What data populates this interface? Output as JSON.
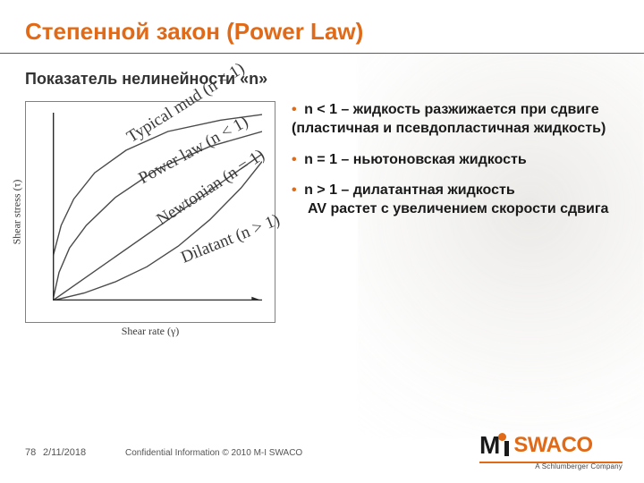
{
  "colors": {
    "accent": "#e06a17",
    "text": "#1a1a1a",
    "title": "#e06a17",
    "rule": "#5a5a5a",
    "chart_border": "#808080",
    "axis": "#2a2a2a",
    "curve": "#4a4a4a",
    "background": "#ffffff"
  },
  "typography": {
    "title_fontsize": 26,
    "subtitle_fontsize": 18,
    "body_fontsize": 16,
    "axis_label_fontsize": 12,
    "curve_label_fontsize": 9,
    "footer_fontsize": 11
  },
  "title": "Степенной закон (Power Law)",
  "subtitle": "Показатель нелинейности «n»",
  "chart": {
    "type": "line",
    "xlabel": "Shear rate (γ)",
    "ylabel": "Shear stress (τ)",
    "xlim": [
      0,
      10
    ],
    "ylim": [
      0,
      10
    ],
    "axis_color": "#2a2a2a",
    "curve_color": "#4a4a4a",
    "line_width": 1.4,
    "curves": [
      {
        "label": "Typical mud (n < 1)",
        "label_pos": {
          "x": 3.6,
          "y": 8.4,
          "rotate": -32
        },
        "points": [
          [
            0,
            2.3
          ],
          [
            0.4,
            4.0
          ],
          [
            1.0,
            5.4
          ],
          [
            2.0,
            6.8
          ],
          [
            3.5,
            8.0
          ],
          [
            5.5,
            9.0
          ],
          [
            8.0,
            9.6
          ],
          [
            10,
            9.9
          ]
        ]
      },
      {
        "label": "Power law (n < 1)",
        "label_pos": {
          "x": 4.2,
          "y": 6.2,
          "rotate": -29
        },
        "points": [
          [
            0,
            0
          ],
          [
            0.3,
            1.5
          ],
          [
            0.8,
            2.8
          ],
          [
            1.6,
            4.0
          ],
          [
            3.0,
            5.5
          ],
          [
            5.0,
            7.0
          ],
          [
            7.5,
            8.2
          ],
          [
            10,
            9.0
          ]
        ]
      },
      {
        "label": "Newtonian (n = 1)",
        "label_pos": {
          "x": 5.2,
          "y": 4.0,
          "rotate": -33
        },
        "points": [
          [
            0,
            0
          ],
          [
            10,
            7.8
          ]
        ]
      },
      {
        "label": "Dilatant (n > 1)",
        "label_pos": {
          "x": 6.4,
          "y": 2.0,
          "rotate": -22
        },
        "points": [
          [
            0,
            0
          ],
          [
            1.5,
            0.4
          ],
          [
            3.0,
            1.0
          ],
          [
            4.5,
            1.8
          ],
          [
            6.0,
            2.9
          ],
          [
            7.5,
            4.3
          ],
          [
            9.0,
            6.0
          ],
          [
            10,
            7.4
          ]
        ]
      }
    ]
  },
  "bullets": [
    {
      "lead": "n < 1",
      "rest": " – жидкость разжижается при сдвиге (пластичная и псевдопластичная жидкость)"
    },
    {
      "lead": "n = 1",
      "rest": " – ньютоновская жидкость"
    },
    {
      "lead": "n > 1",
      "rest": " – дилатантная жидкость",
      "extra": "AV растет  с увеличением скорости   сдвига"
    }
  ],
  "footer": {
    "page": "78",
    "date": "2/11/2018",
    "confidential": "Confidential Information  © 2010 M-I SWACO"
  },
  "logo": {
    "m": "M",
    "swaco": "SWACO",
    "sub": "A Schlumberger Company"
  }
}
